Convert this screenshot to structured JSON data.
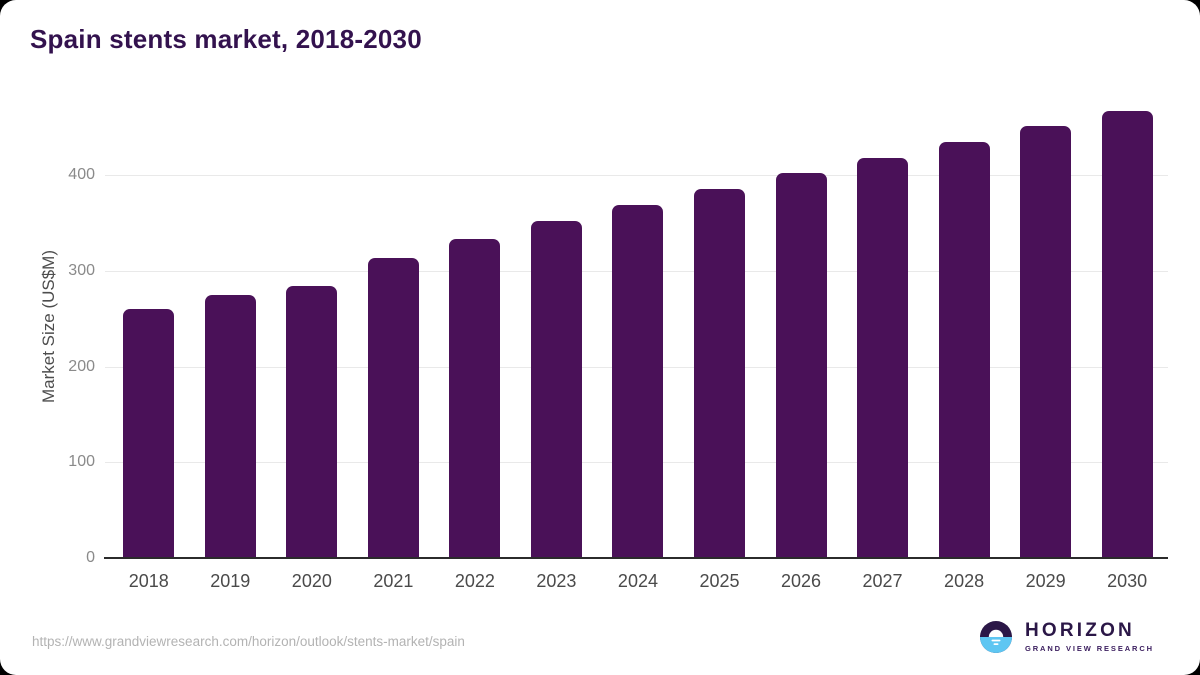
{
  "title": "Spain stents market, 2018-2030",
  "chart_data": {
    "type": "bar",
    "title": "Spain stents market, 2018-2030",
    "categories": [
      "2018",
      "2019",
      "2020",
      "2021",
      "2022",
      "2023",
      "2024",
      "2025",
      "2026",
      "2027",
      "2028",
      "2029",
      "2030"
    ],
    "values": [
      260,
      275,
      284,
      314,
      333,
      352,
      369,
      386,
      402,
      418,
      435,
      452,
      467
    ],
    "xlabel": "",
    "ylabel": "Market Size (US$M)",
    "ylim": [
      0,
      483
    ],
    "yticks": [
      0,
      100,
      200,
      300,
      400
    ],
    "grid": "horizontal",
    "legend": "none",
    "bar_color": "#4a1158"
  },
  "colors": {
    "page_bg": "#000000",
    "card_bg": "#ffffff",
    "title": "#33124e",
    "bar": "#4a1158",
    "gridline": "#e9e9e9",
    "baseline": "#2b2b2b",
    "tick_label": "#8a8a8a",
    "category_label": "#4a4a4a",
    "url_text": "#b3b3b3",
    "logo_purple": "#2b1747",
    "logo_blue": "#5ec6f2"
  },
  "footer": {
    "source_url": "https://www.grandviewresearch.com/horizon/outlook/stents-market/spain",
    "logo_text": "HORIZON",
    "logo_subtext": "GRAND VIEW RESEARCH"
  }
}
